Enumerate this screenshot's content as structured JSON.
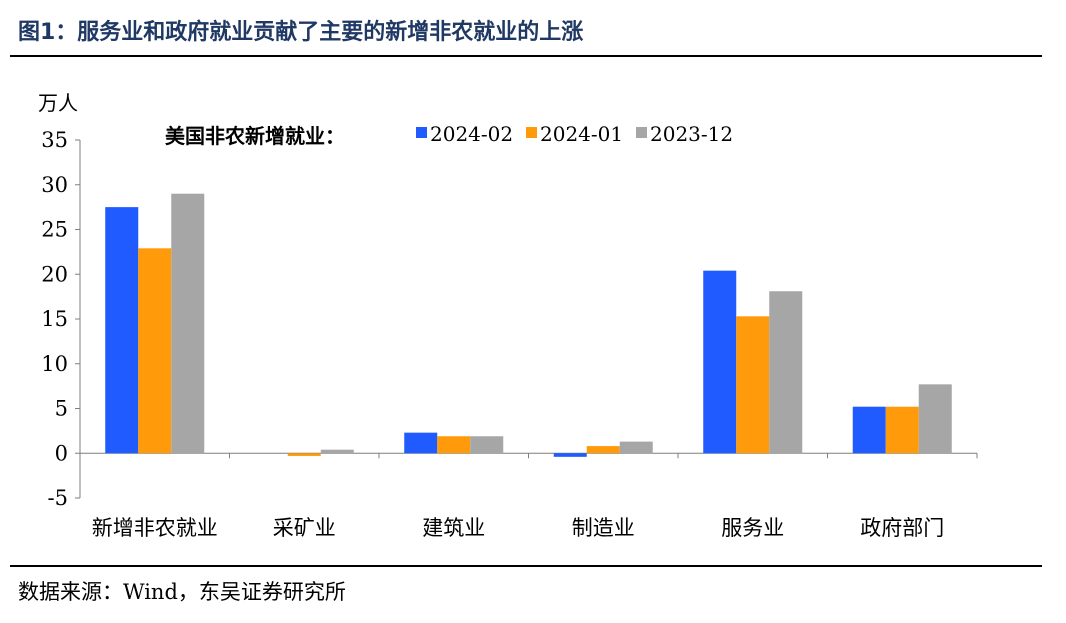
{
  "figure": {
    "title": "图1：服务业和政府就业贡献了主要的新增非农就业的上涨",
    "source": "数据来源：Wind，东吴证券研究所"
  },
  "colors": {
    "title": "#1f3864",
    "series": [
      "#1f5bff",
      "#ff9a0a",
      "#a6a6a6"
    ]
  },
  "chart_data": {
    "type": "bar",
    "legend_title": "美国非农新增就业：",
    "legend_position": "top",
    "ylabel": "万人",
    "ylim": [
      -5,
      35
    ],
    "yticks": [
      -5,
      0,
      5,
      10,
      15,
      20,
      25,
      30,
      35
    ],
    "grid": false,
    "categories": [
      "新增非农就业",
      "采矿业",
      "建筑业",
      "制造业",
      "服务业",
      "政府部门"
    ],
    "series": [
      {
        "name": "2024-02",
        "values": [
          27.5,
          0.0,
          2.3,
          -0.4,
          20.4,
          5.2
        ]
      },
      {
        "name": "2024-01",
        "values": [
          22.9,
          -0.3,
          1.9,
          0.8,
          15.3,
          5.2
        ]
      },
      {
        "name": "2023-12",
        "values": [
          29.0,
          0.4,
          1.9,
          1.3,
          18.1,
          7.7
        ]
      }
    ]
  }
}
